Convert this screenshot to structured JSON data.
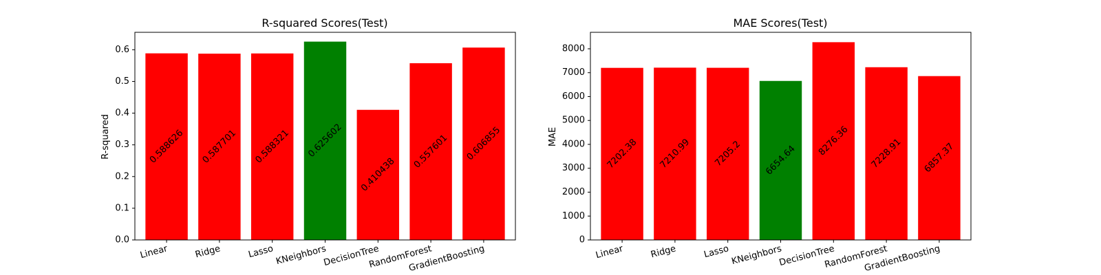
{
  "chart_data": [
    {
      "type": "bar",
      "title": "R-squared Scores(Test)",
      "xlabel": "",
      "ylabel": "R-squared",
      "ylim": [
        0,
        0.655
      ],
      "yticks": [
        0.0,
        0.1,
        0.2,
        0.3,
        0.4,
        0.5,
        0.6
      ],
      "ytick_labels": [
        "0.0",
        "0.1",
        "0.2",
        "0.3",
        "0.4",
        "0.5",
        "0.6"
      ],
      "categories": [
        "Linear",
        "Ridge",
        "Lasso",
        "KNeighbors",
        "DecisionTree",
        "RandomForest",
        "GradientBoosting"
      ],
      "values": [
        0.588626,
        0.587701,
        0.588321,
        0.625602,
        0.410438,
        0.557601,
        0.606855
      ],
      "value_labels": [
        "0.588626",
        "0.587701",
        "0.588321",
        "0.625602",
        "0.410438",
        "0.557601",
        "0.606855"
      ],
      "colors": [
        "#ff0000",
        "#ff0000",
        "#ff0000",
        "#008000",
        "#ff0000",
        "#ff0000",
        "#ff0000"
      ],
      "grid": false
    },
    {
      "type": "bar",
      "title": "MAE Scores(Test)",
      "xlabel": "",
      "ylabel": "MAE",
      "ylim": [
        0,
        8690
      ],
      "yticks": [
        0,
        1000,
        2000,
        3000,
        4000,
        5000,
        6000,
        7000,
        8000
      ],
      "ytick_labels": [
        "0",
        "1000",
        "2000",
        "3000",
        "4000",
        "5000",
        "6000",
        "7000",
        "8000"
      ],
      "categories": [
        "Linear",
        "Ridge",
        "Lasso",
        "KNeighbors",
        "DecisionTree",
        "RandomForest",
        "GradientBoosting"
      ],
      "values": [
        7202.38,
        7210.99,
        7205.2,
        6654.64,
        8276.36,
        7228.91,
        6857.37
      ],
      "value_labels": [
        "7202.38",
        "7210.99",
        "7205.2",
        "6654.64",
        "8276.36",
        "7228.91",
        "6857.37"
      ],
      "colors": [
        "#ff0000",
        "#ff0000",
        "#ff0000",
        "#008000",
        "#ff0000",
        "#ff0000",
        "#ff0000"
      ],
      "grid": false
    }
  ]
}
